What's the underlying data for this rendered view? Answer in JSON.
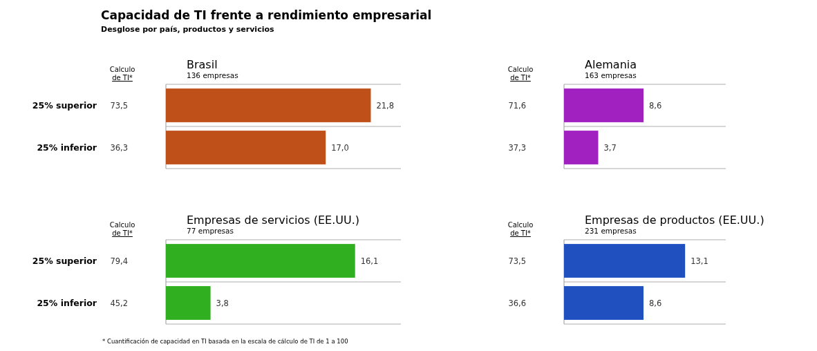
{
  "chart_data": [
    {
      "type": "other",
      "title": "Capacidad de TI frente a rendimiento empresarial",
      "subtitle": "Desglose por país, productos y servicios",
      "annotations": [
        "* Cuantificación de capacidad en TI basada en la escala de cálculo de TI de 1 a 100"
      ]
    },
    {
      "type": "bar",
      "orientation": "horizontal",
      "title": "Brasil",
      "subtitle": "136 empresas",
      "categories": [
        "25% superior",
        "25% inferior"
      ],
      "values": [
        21.8,
        17.0
      ],
      "value_labels": [
        "21,8",
        "17,0"
      ],
      "color": "#c0501a",
      "xlim": [
        0,
        25
      ],
      "annotations": [
        "Calculo de TI*",
        "73,5",
        "36,3"
      ]
    },
    {
      "type": "bar",
      "orientation": "horizontal",
      "title": "Alemania",
      "subtitle": "163 empresas",
      "categories": [
        null,
        null
      ],
      "values": [
        8.6,
        3.7
      ],
      "value_labels": [
        "8,6",
        "3,7"
      ],
      "color": "#a020c0",
      "xlim": [
        0,
        17.5
      ],
      "annotations": [
        "Calculo de TI*",
        "71,6",
        "37,3"
      ]
    },
    {
      "type": "bar",
      "orientation": "horizontal",
      "title": "Empresas de servicios (EE.UU.)",
      "subtitle": "77 empresas",
      "categories": [
        "25% superior",
        "25% inferior"
      ],
      "values": [
        16.1,
        3.8
      ],
      "value_labels": [
        "16,1",
        "3,8"
      ],
      "color": "#30b020",
      "xlim": [
        0,
        20
      ],
      "annotations": [
        "Calculo de TI*",
        "79,4",
        "45,2"
      ]
    },
    {
      "type": "bar",
      "orientation": "horizontal",
      "title": "Empresas de productos (EE.UU.)",
      "subtitle": "231 empresas",
      "categories": [
        null,
        null
      ],
      "values": [
        13.1,
        8.6
      ],
      "value_labels": [
        "13,1",
        "8,6"
      ],
      "color": "#2050c0",
      "xlim": [
        0,
        17.5
      ],
      "annotations": [
        "Calculo de TI*",
        "73,5",
        "36,6"
      ]
    }
  ]
}
